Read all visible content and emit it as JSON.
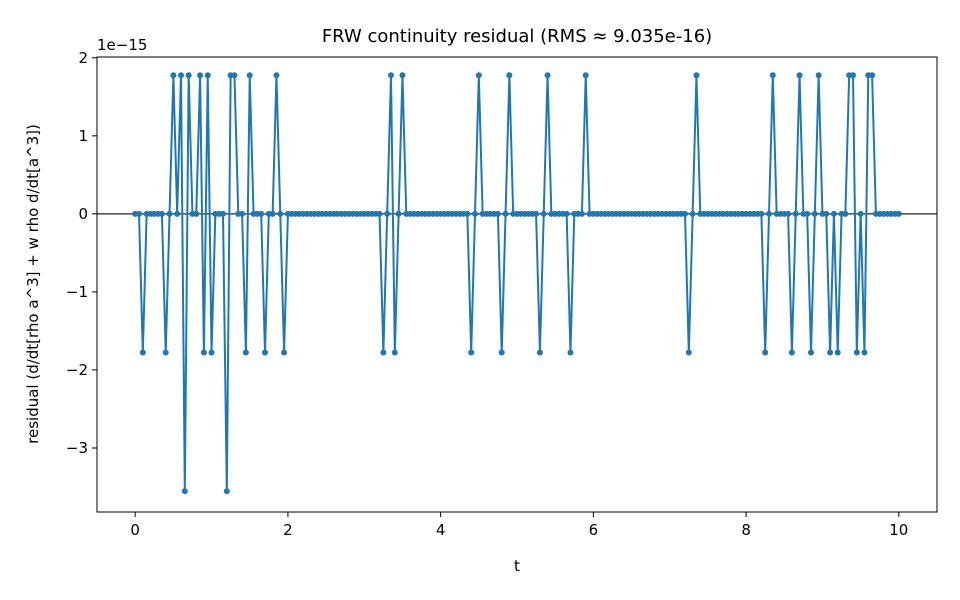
{
  "chart_data": {
    "type": "line",
    "title": "FRW continuity residual (RMS ≈ 9.035e-16)",
    "x_label": "t",
    "y_label": "residual (d/dt[rho a^3] + w rho d/dt[a^3])",
    "y_offset_text": "1e−15",
    "xlim": [
      -0.5,
      10.5
    ],
    "ylim": [
      -3.82,
      2.01
    ],
    "xticks": [
      0,
      2,
      4,
      6,
      8,
      10
    ],
    "yticks": [
      {
        "value": -3,
        "label": "−3"
      },
      {
        "value": -2,
        "label": "−2"
      },
      {
        "value": -1,
        "label": "−1"
      },
      0,
      1,
      2
    ],
    "hline": 0,
    "hline_color": "#222222",
    "grid": false,
    "x": [
      0,
      0.05,
      0.1,
      0.15,
      0.2,
      0.25,
      0.3,
      0.35,
      0.4,
      0.45,
      0.5,
      0.55,
      0.6,
      0.65,
      0.7,
      0.75,
      0.8,
      0.85,
      0.9,
      0.95,
      1,
      1.05,
      1.1,
      1.15,
      1.2,
      1.25,
      1.3,
      1.35,
      1.4,
      1.45,
      1.5,
      1.55,
      1.6,
      1.65,
      1.7,
      1.75,
      1.8,
      1.85,
      1.9,
      1.95,
      2,
      2.05,
      2.1,
      2.15,
      2.2,
      2.25,
      2.3,
      2.35,
      2.4,
      2.45,
      2.5,
      2.55,
      2.6,
      2.65,
      2.7,
      2.75,
      2.8,
      2.85,
      2.9,
      2.95,
      3,
      3.05,
      3.1,
      3.15,
      3.2,
      3.25,
      3.3,
      3.35,
      3.4,
      3.45,
      3.5,
      3.55,
      3.6,
      3.65,
      3.7,
      3.75,
      3.8,
      3.85,
      3.9,
      3.95,
      4,
      4.05,
      4.1,
      4.15,
      4.2,
      4.25,
      4.3,
      4.35,
      4.4,
      4.45,
      4.5,
      4.55,
      4.6,
      4.65,
      4.7,
      4.75,
      4.8,
      4.85,
      4.9,
      4.95,
      5,
      5.05,
      5.1,
      5.15,
      5.2,
      5.25,
      5.3,
      5.35,
      5.4,
      5.45,
      5.5,
      5.55,
      5.6,
      5.65,
      5.7,
      5.75,
      5.8,
      5.85,
      5.9,
      5.95,
      6,
      6.05,
      6.1,
      6.15,
      6.2,
      6.25,
      6.3,
      6.35,
      6.4,
      6.45,
      6.5,
      6.55,
      6.6,
      6.65,
      6.7,
      6.75,
      6.8,
      6.85,
      6.9,
      6.95,
      7,
      7.05,
      7.1,
      7.15,
      7.2,
      7.25,
      7.3,
      7.35,
      7.4,
      7.45,
      7.5,
      7.55,
      7.6,
      7.65,
      7.7,
      7.75,
      7.8,
      7.85,
      7.9,
      7.95,
      8,
      8.05,
      8.1,
      8.15,
      8.2,
      8.25,
      8.3,
      8.35,
      8.4,
      8.45,
      8.5,
      8.55,
      8.6,
      8.65,
      8.7,
      8.75,
      8.8,
      8.85,
      8.9,
      8.95,
      9,
      9.05,
      9.1,
      9.15,
      9.2,
      9.25,
      9.3,
      9.35,
      9.4,
      9.45,
      9.5,
      9.55,
      9.6,
      9.65,
      9.7,
      9.75,
      9.8,
      9.85,
      9.9,
      9.95,
      10
    ],
    "series": [
      {
        "color": "#1f77b4",
        "values": [
          0,
          0,
          -1.776,
          0,
          0,
          0,
          0,
          0,
          -1.776,
          0,
          1.776,
          0,
          1.776,
          -3.553,
          1.776,
          0,
          0,
          1.776,
          -1.776,
          1.776,
          -1.776,
          0,
          0,
          0,
          -3.553,
          1.776,
          1.776,
          0,
          0,
          -1.776,
          1.776,
          0,
          0,
          0,
          -1.776,
          0,
          0,
          1.776,
          0,
          -1.776,
          0,
          0,
          0,
          0,
          0,
          0,
          0,
          0,
          0,
          0,
          0,
          0,
          0,
          0,
          0,
          0,
          0,
          0,
          0,
          0,
          0,
          0,
          0,
          0,
          0,
          -1.776,
          0,
          1.776,
          -1.776,
          0,
          1.776,
          0,
          0,
          0,
          0,
          0,
          0,
          0,
          0,
          0,
          0,
          0,
          0,
          0,
          0,
          0,
          0,
          0,
          -1.776,
          0,
          1.776,
          0,
          0,
          0,
          0,
          0,
          -1.776,
          0,
          1.776,
          0,
          0,
          0,
          0,
          0,
          0,
          0,
          -1.776,
          0,
          1.776,
          0,
          0,
          0,
          0,
          0,
          -1.776,
          0,
          0,
          0,
          1.776,
          0,
          0,
          0,
          0,
          0,
          0,
          0,
          0,
          0,
          0,
          0,
          0,
          0,
          0,
          0,
          0,
          0,
          0,
          0,
          0,
          0,
          0,
          0,
          0,
          0,
          0,
          -1.776,
          0,
          1.776,
          0,
          0,
          0,
          0,
          0,
          0,
          0,
          0,
          0,
          0,
          0,
          0,
          0,
          0,
          0,
          0,
          0,
          -1.776,
          0,
          1.776,
          0,
          0,
          0,
          0,
          -1.776,
          0,
          1.776,
          0,
          0,
          -1.776,
          0,
          1.776,
          0,
          0,
          -1.776,
          0,
          -1.776,
          0,
          0,
          1.776,
          1.776,
          -1.776,
          0,
          -1.776,
          1.776,
          1.776,
          0,
          0,
          0,
          0,
          0,
          0,
          0
        ]
      }
    ]
  }
}
